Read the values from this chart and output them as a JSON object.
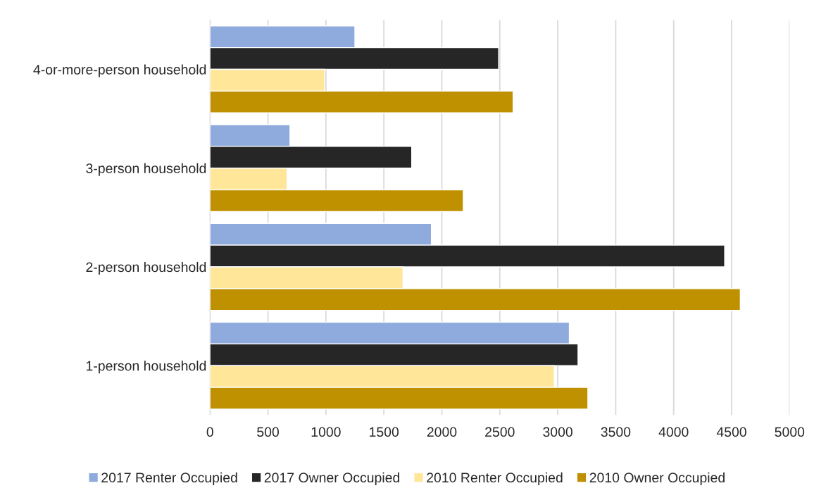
{
  "chart_data": {
    "type": "bar",
    "orientation": "horizontal",
    "categories": [
      "4-or-more-person household",
      "3-person household",
      "2-person household",
      "1-person household"
    ],
    "series": [
      {
        "name": "2017 Renter Occupied",
        "color": "#8faadc",
        "values": [
          1250,
          690,
          1910,
          3100
        ]
      },
      {
        "name": "2017 Owner Occupied",
        "color": "#262626",
        "values": [
          2490,
          1740,
          4440,
          3175
        ]
      },
      {
        "name": "2010 Renter Occupied",
        "color": "#ffe699",
        "values": [
          990,
          665,
          1665,
          2970
        ]
      },
      {
        "name": "2010 Owner Occupied",
        "color": "#bf9000",
        "values": [
          2615,
          2185,
          4575,
          3260
        ]
      }
    ],
    "xlim": [
      0,
      5000
    ],
    "xticks": [
      0,
      500,
      1000,
      1500,
      2000,
      2500,
      3000,
      3500,
      4000,
      4500,
      5000
    ],
    "grid": "x",
    "legend": "bottom"
  }
}
